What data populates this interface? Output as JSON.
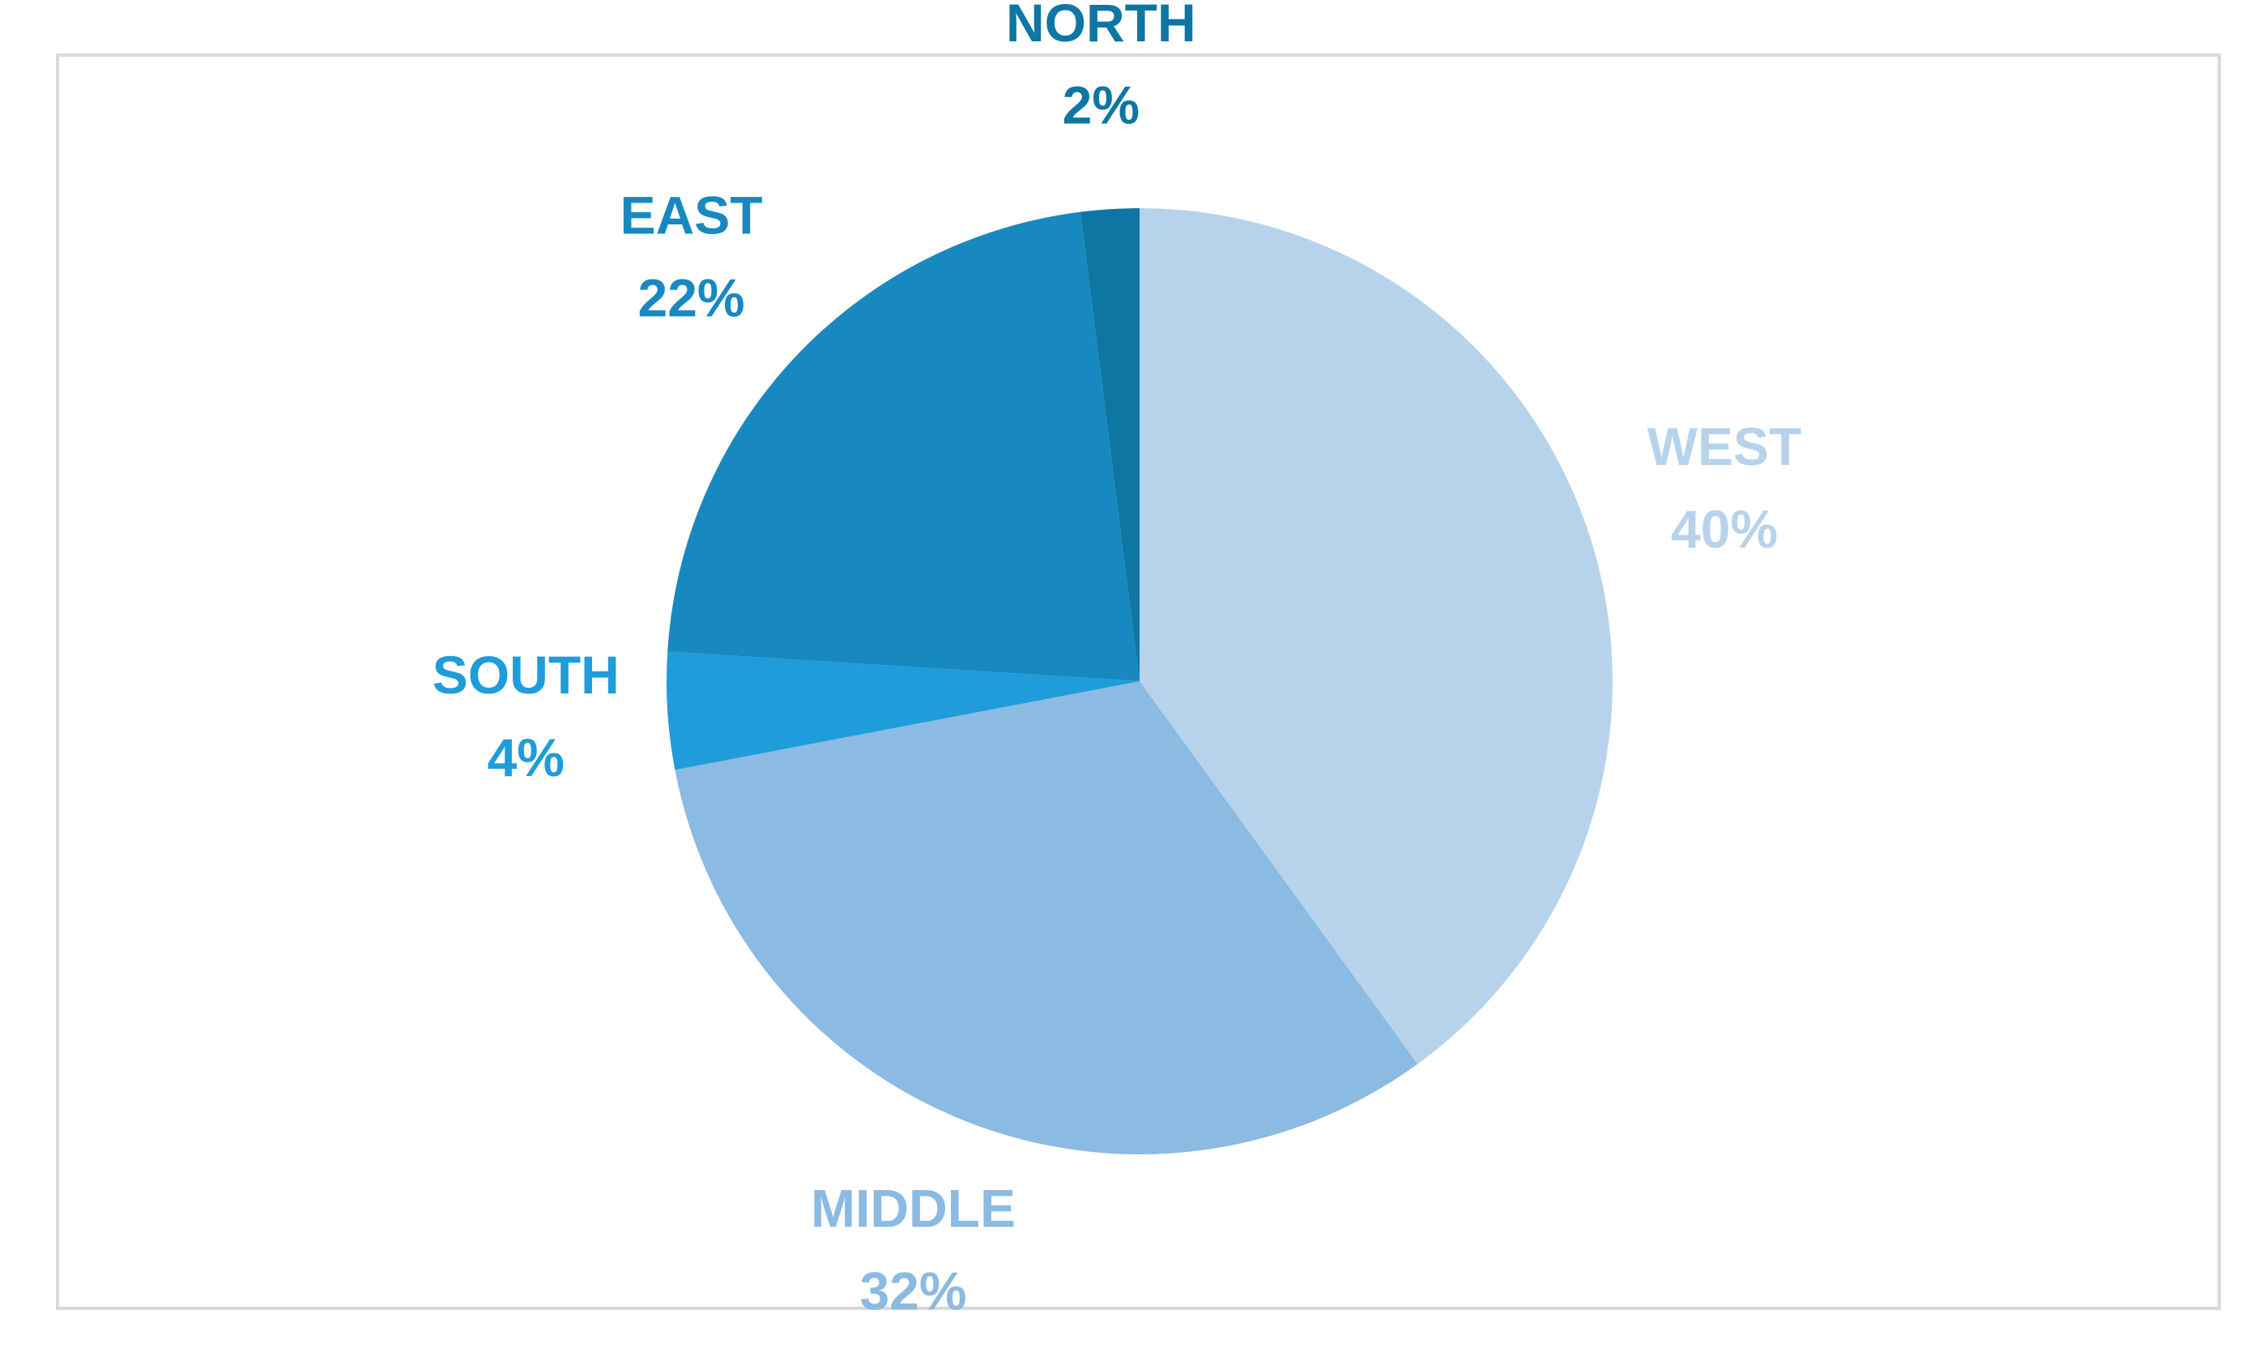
{
  "chart_data": {
    "type": "pie",
    "categories": [
      "WEST",
      "MIDDLE",
      "SOUTH",
      "EAST",
      "NORTH"
    ],
    "values": [
      40,
      32,
      4,
      22,
      2
    ],
    "value_labels": [
      "40%",
      "32%",
      "4%",
      "22%",
      "2%"
    ],
    "colors": [
      "#b7d3ec",
      "#8bbae2",
      "#1f9cd9",
      "#1789c0",
      "#0e76a3"
    ]
  }
}
